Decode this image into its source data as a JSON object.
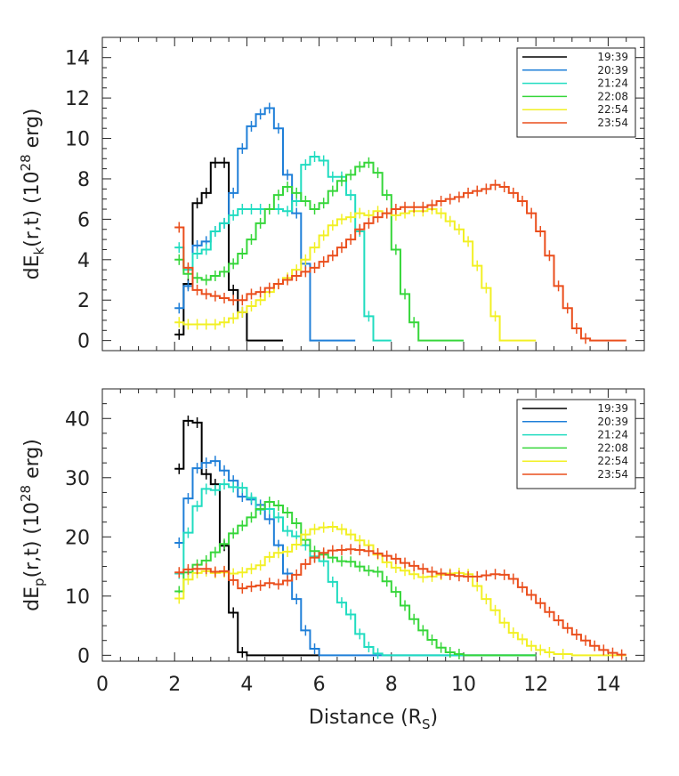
{
  "chart_data": [
    {
      "type": "line",
      "step": true,
      "ylabel_main": "dE",
      "ylabel_sub": "k",
      "ylabel_rest": "(r,t)  (10",
      "ylabel_sup": "28",
      "ylabel_end": " erg)",
      "xlim": [
        0,
        15
      ],
      "ylim": [
        -0.5,
        15
      ],
      "yticks": [
        0,
        2,
        4,
        6,
        8,
        10,
        12,
        14
      ],
      "legend_position": "top-right",
      "series": [
        {
          "name": "19:39",
          "color": "#000000",
          "x": [
            2.0,
            2.25,
            2.5,
            2.75,
            3.0,
            3.25,
            3.5,
            3.75,
            4.0,
            5.0
          ],
          "y": [
            0.3,
            2.8,
            6.8,
            7.3,
            8.8,
            8.8,
            2.5,
            1.4,
            0.0,
            0.0
          ]
        },
        {
          "name": "20:39",
          "color": "#1f7fd8",
          "x": [
            2.0,
            2.25,
            2.5,
            2.75,
            3.0,
            3.25,
            3.5,
            3.75,
            4.0,
            4.25,
            4.5,
            4.75,
            5.0,
            5.25,
            5.5,
            5.75,
            6.0,
            7.0
          ],
          "y": [
            1.6,
            2.7,
            4.7,
            4.9,
            5.4,
            5.8,
            7.3,
            9.5,
            10.6,
            11.2,
            11.5,
            10.5,
            8.2,
            6.3,
            3.8,
            0.0,
            0.0,
            0.0
          ]
        },
        {
          "name": "21:24",
          "color": "#20dcc0",
          "x": [
            2.0,
            2.25,
            2.5,
            2.75,
            3.0,
            3.25,
            3.5,
            3.75,
            4.0,
            4.25,
            4.5,
            4.75,
            5.0,
            5.25,
            5.5,
            5.75,
            6.0,
            6.25,
            6.5,
            6.75,
            7.0,
            7.25,
            7.5,
            8.0
          ],
          "y": [
            4.6,
            3.5,
            4.3,
            4.5,
            5.4,
            5.8,
            6.2,
            6.5,
            6.5,
            6.5,
            6.5,
            6.5,
            6.4,
            6.9,
            8.7,
            9.1,
            8.9,
            8.1,
            8.1,
            7.2,
            5.4,
            1.2,
            0.0,
            0.0
          ]
        },
        {
          "name": "22:08",
          "color": "#36d63a",
          "x": [
            2.0,
            2.25,
            2.5,
            2.75,
            3.0,
            3.25,
            3.5,
            3.75,
            4.0,
            4.25,
            4.5,
            4.75,
            5.0,
            5.25,
            5.5,
            5.75,
            6.0,
            6.25,
            6.5,
            6.75,
            7.0,
            7.25,
            7.5,
            7.75,
            8.0,
            8.25,
            8.5,
            8.75,
            9.0,
            9.25,
            9.5,
            10.0
          ],
          "y": [
            4.0,
            3.3,
            3.1,
            3.0,
            3.2,
            3.4,
            3.8,
            4.3,
            5.0,
            5.8,
            6.5,
            7.2,
            7.6,
            7.3,
            6.9,
            6.5,
            6.8,
            7.4,
            7.9,
            8.2,
            8.6,
            8.8,
            8.3,
            7.2,
            4.5,
            2.3,
            0.9,
            0.0,
            0.0,
            0.0,
            0.0,
            0.0
          ]
        },
        {
          "name": "22:54",
          "color": "#f2f024",
          "x": [
            2.0,
            2.25,
            2.5,
            2.75,
            3.0,
            3.25,
            3.5,
            3.75,
            4.0,
            4.25,
            4.5,
            4.75,
            5.0,
            5.25,
            5.5,
            5.75,
            6.0,
            6.25,
            6.5,
            6.75,
            7.0,
            7.25,
            7.5,
            7.75,
            8.0,
            8.25,
            8.5,
            8.75,
            9.0,
            9.25,
            9.5,
            9.75,
            10.0,
            10.25,
            10.5,
            10.75,
            11.0,
            11.25,
            11.5,
            12.0
          ],
          "y": [
            0.9,
            0.8,
            0.8,
            0.8,
            0.8,
            0.9,
            1.1,
            1.4,
            1.7,
            2.0,
            2.4,
            2.8,
            3.1,
            3.5,
            4.0,
            4.6,
            5.2,
            5.7,
            6.0,
            6.1,
            6.3,
            6.2,
            6.4,
            6.3,
            6.2,
            6.3,
            6.4,
            6.4,
            6.5,
            6.3,
            5.9,
            5.5,
            4.9,
            3.7,
            2.6,
            1.2,
            0.0,
            0.0,
            0.0,
            0.0
          ]
        },
        {
          "name": "23:54",
          "color": "#ea4e1c",
          "x": [
            2.0,
            2.25,
            2.5,
            2.75,
            3.0,
            3.25,
            3.5,
            3.75,
            4.0,
            4.25,
            4.5,
            4.75,
            5.0,
            5.25,
            5.5,
            5.75,
            6.0,
            6.25,
            6.5,
            6.75,
            7.0,
            7.25,
            7.5,
            7.75,
            8.0,
            8.25,
            8.5,
            8.75,
            9.0,
            9.25,
            9.5,
            9.75,
            10.0,
            10.25,
            10.5,
            10.75,
            11.0,
            11.25,
            11.5,
            11.75,
            12.0,
            12.25,
            12.5,
            12.75,
            13.0,
            13.25,
            13.5,
            13.75,
            14.0,
            14.5
          ],
          "y": [
            5.6,
            3.6,
            2.5,
            2.3,
            2.2,
            2.1,
            2.0,
            2.0,
            2.3,
            2.4,
            2.6,
            2.8,
            3.0,
            3.2,
            3.4,
            3.6,
            3.9,
            4.2,
            4.6,
            5.0,
            5.5,
            5.8,
            6.1,
            6.3,
            6.5,
            6.6,
            6.6,
            6.6,
            6.7,
            6.9,
            7.0,
            7.1,
            7.3,
            7.4,
            7.5,
            7.7,
            7.6,
            7.3,
            6.9,
            6.3,
            5.4,
            4.2,
            2.7,
            1.6,
            0.6,
            0.1,
            0.0,
            0.0,
            0.0,
            0.0
          ]
        }
      ]
    },
    {
      "type": "line",
      "step": true,
      "ylabel_main": "dE",
      "ylabel_sub": "p",
      "ylabel_rest": "(r,t)  (10",
      "ylabel_sup": "28",
      "ylabel_end": " erg)",
      "xlabel_main": "Distance  (R",
      "xlabel_sub": "S",
      "xlabel_end": ")",
      "xlim": [
        0,
        15
      ],
      "ylim": [
        -1,
        45
      ],
      "xticks": [
        0,
        2,
        4,
        6,
        8,
        10,
        12,
        14
      ],
      "yticks": [
        0,
        10,
        20,
        30,
        40
      ],
      "legend_position": "top-right",
      "series": [
        {
          "name": "19:39",
          "color": "#000000",
          "x": [
            2.0,
            2.25,
            2.5,
            2.75,
            3.0,
            3.25,
            3.5,
            3.75,
            4.0,
            5.0,
            6.0
          ],
          "y": [
            31.5,
            39.6,
            39.3,
            30.6,
            28.9,
            18.5,
            7.2,
            0.5,
            0.0,
            0.0,
            0.0
          ]
        },
        {
          "name": "20:39",
          "color": "#1f7fd8",
          "x": [
            2.0,
            2.25,
            2.5,
            2.75,
            3.0,
            3.25,
            3.5,
            3.75,
            4.0,
            4.25,
            4.5,
            4.75,
            5.0,
            5.25,
            5.5,
            5.75,
            6.0,
            6.25,
            7.0,
            8.0,
            9.0,
            10.0,
            11.0,
            12.0
          ],
          "y": [
            19.0,
            26.5,
            31.6,
            32.5,
            32.8,
            31.2,
            29.5,
            26.8,
            26.3,
            25.4,
            23.0,
            18.6,
            13.8,
            9.5,
            4.2,
            1.1,
            0.0,
            0.0,
            0.0,
            0.0,
            0.0,
            0.0,
            0.0,
            0.0
          ]
        },
        {
          "name": "21:24",
          "color": "#20dcc0",
          "x": [
            2.0,
            2.25,
            2.5,
            2.75,
            3.0,
            3.25,
            3.5,
            3.75,
            4.0,
            4.25,
            4.5,
            4.75,
            5.0,
            5.25,
            5.5,
            5.75,
            6.0,
            6.25,
            6.5,
            6.75,
            7.0,
            7.25,
            7.5,
            7.75,
            8.0,
            8.5,
            9.0,
            10.0,
            11.0,
            12.0
          ],
          "y": [
            13.8,
            20.7,
            25.2,
            28.1,
            27.9,
            28.9,
            28.4,
            28.3,
            26.6,
            24.6,
            24.7,
            23.3,
            21.0,
            20.1,
            18.6,
            16.7,
            15.9,
            12.4,
            8.9,
            6.9,
            3.6,
            1.4,
            0.3,
            0.0,
            0.0,
            0.0,
            0.0,
            0.0,
            0.0,
            0.0
          ]
        },
        {
          "name": "22:08",
          "color": "#36d63a",
          "x": [
            2.0,
            2.25,
            2.5,
            2.75,
            3.0,
            3.25,
            3.5,
            3.75,
            4.0,
            4.25,
            4.5,
            4.75,
            5.0,
            5.25,
            5.5,
            5.75,
            6.0,
            6.25,
            6.5,
            6.75,
            7.0,
            7.25,
            7.5,
            7.75,
            8.0,
            8.25,
            8.5,
            8.75,
            9.0,
            9.25,
            9.5,
            9.75,
            10.0,
            10.5,
            11.0,
            12.0
          ],
          "y": [
            10.8,
            14.0,
            15.3,
            16.0,
            17.4,
            18.8,
            20.6,
            21.9,
            23.3,
            24.7,
            25.9,
            25.3,
            24.1,
            22.3,
            19.5,
            17.6,
            17.0,
            16.5,
            15.9,
            15.8,
            15.0,
            14.3,
            14.1,
            12.5,
            10.7,
            8.4,
            6.1,
            4.2,
            2.6,
            1.3,
            0.5,
            0.2,
            0.0,
            0.0,
            0.0,
            0.0
          ]
        },
        {
          "name": "22:54",
          "color": "#f2f024",
          "x": [
            2.0,
            2.25,
            2.5,
            2.75,
            3.0,
            3.25,
            3.5,
            3.75,
            4.0,
            4.25,
            4.5,
            4.75,
            5.0,
            5.25,
            5.5,
            5.75,
            6.0,
            6.25,
            6.5,
            6.75,
            7.0,
            7.25,
            7.5,
            7.75,
            8.0,
            8.25,
            8.5,
            8.75,
            9.0,
            9.25,
            9.5,
            9.75,
            10.0,
            10.25,
            10.5,
            10.75,
            11.0,
            11.25,
            11.5,
            11.75,
            12.0,
            12.25,
            12.5,
            13.0,
            13.5,
            14.0,
            14.5
          ],
          "y": [
            9.6,
            12.8,
            13.9,
            14.2,
            13.9,
            14.0,
            13.8,
            14.0,
            14.6,
            15.2,
            16.6,
            17.3,
            17.5,
            18.7,
            20.4,
            21.3,
            21.6,
            21.7,
            21.3,
            20.4,
            19.4,
            18.6,
            17.0,
            15.7,
            14.8,
            14.3,
            13.7,
            13.2,
            13.3,
            13.6,
            13.8,
            13.9,
            13.7,
            11.7,
            9.5,
            7.6,
            5.5,
            3.8,
            2.7,
            1.6,
            0.9,
            0.5,
            0.2,
            0.0,
            0.0,
            0.0,
            0.0
          ]
        },
        {
          "name": "23:54",
          "color": "#ea4e1c",
          "x": [
            2.0,
            2.25,
            2.5,
            2.75,
            3.0,
            3.25,
            3.5,
            3.75,
            4.0,
            4.25,
            4.5,
            4.75,
            5.0,
            5.25,
            5.5,
            5.75,
            6.0,
            6.25,
            6.5,
            6.75,
            7.0,
            7.25,
            7.5,
            7.75,
            8.0,
            8.25,
            8.5,
            8.75,
            9.0,
            9.25,
            9.5,
            9.75,
            10.0,
            10.25,
            10.5,
            10.75,
            11.0,
            11.25,
            11.5,
            11.75,
            12.0,
            12.25,
            12.5,
            12.75,
            13.0,
            13.25,
            13.5,
            13.75,
            14.0,
            14.25,
            14.5
          ],
          "y": [
            14.0,
            14.5,
            14.6,
            14.6,
            14.1,
            14.2,
            12.7,
            11.3,
            11.6,
            11.8,
            12.2,
            12.0,
            12.6,
            13.6,
            15.4,
            16.5,
            17.3,
            17.7,
            17.8,
            17.9,
            17.8,
            17.6,
            17.2,
            16.8,
            16.3,
            15.6,
            15.1,
            14.6,
            14.1,
            13.8,
            13.6,
            13.4,
            13.3,
            13.3,
            13.5,
            13.7,
            13.6,
            12.9,
            11.5,
            10.2,
            8.8,
            7.3,
            5.9,
            4.6,
            3.5,
            2.5,
            1.6,
            0.9,
            0.4,
            0.1,
            0.0
          ]
        }
      ]
    }
  ]
}
